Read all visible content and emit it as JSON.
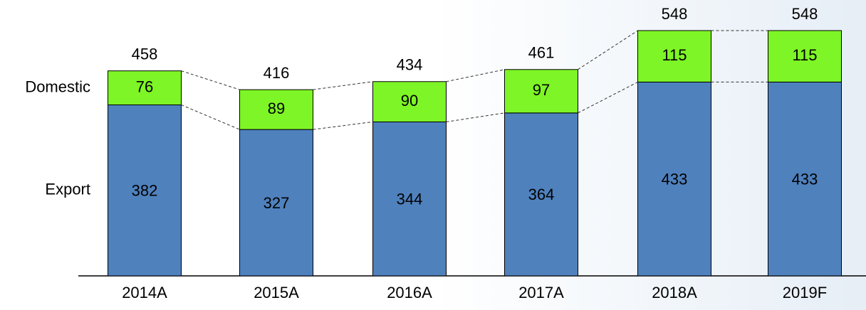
{
  "chart_data": {
    "type": "stacked-bar",
    "categories": [
      "2014A",
      "2015A",
      "2016A",
      "2017A",
      "2018A",
      "2019F"
    ],
    "series": [
      {
        "name": "Export",
        "color": "#4f81bd",
        "values": [
          382,
          327,
          344,
          364,
          433,
          433
        ]
      },
      {
        "name": "Domestic",
        "color": "#7ef526",
        "values": [
          76,
          89,
          90,
          97,
          115,
          115
        ]
      }
    ],
    "totals": [
      458,
      416,
      434,
      461,
      548,
      548
    ]
  }
}
